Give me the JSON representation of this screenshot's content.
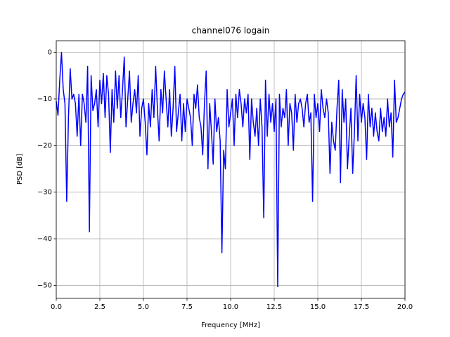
{
  "chart_data": {
    "type": "line",
    "title": "channel076 logain",
    "x_label": "Frequency [MHz]",
    "y_label": "PSD [dB]",
    "color": "#0000ff",
    "grid": true,
    "xlim": [
      0,
      20
    ],
    "ylim": [
      -52.8,
      2.5
    ],
    "xticks": [
      {
        "value": 0,
        "label": "0.0"
      },
      2.5,
      {
        "value": 5,
        "label": "5.0"
      },
      7.5,
      {
        "value": 10,
        "label": "10.0"
      },
      12.5,
      {
        "value": 15,
        "label": "15.0"
      },
      17.5,
      {
        "value": 20,
        "label": "20.0"
      }
    ],
    "yticks": [
      {
        "value": -50,
        "label": "−50"
      },
      {
        "value": -40,
        "label": "−40"
      },
      {
        "value": -30,
        "label": "−30"
      },
      {
        "value": -20,
        "label": "−20"
      },
      {
        "value": -10,
        "label": "−10"
      },
      0
    ],
    "x": [
      0.0,
      0.1,
      0.2,
      0.3,
      0.4,
      0.5,
      0.6,
      0.7,
      0.8,
      0.9,
      1.0,
      1.1,
      1.2,
      1.3,
      1.4,
      1.5,
      1.6,
      1.7,
      1.8,
      1.9,
      2.0,
      2.1,
      2.2,
      2.3,
      2.4,
      2.5,
      2.6,
      2.7,
      2.8,
      2.9,
      3.0,
      3.1,
      3.2,
      3.3,
      3.4,
      3.5,
      3.6,
      3.7,
      3.8,
      3.9,
      4.0,
      4.1,
      4.2,
      4.3,
      4.4,
      4.5,
      4.6,
      4.7,
      4.8,
      4.9,
      5.0,
      5.1,
      5.2,
      5.3,
      5.4,
      5.5,
      5.6,
      5.7,
      5.8,
      5.9,
      6.0,
      6.1,
      6.2,
      6.3,
      6.4,
      6.5,
      6.6,
      6.7,
      6.8,
      6.9,
      7.0,
      7.1,
      7.2,
      7.3,
      7.4,
      7.5,
      7.6,
      7.7,
      7.8,
      7.9,
      8.0,
      8.1,
      8.2,
      8.3,
      8.4,
      8.5,
      8.6,
      8.7,
      8.8,
      8.9,
      9.0,
      9.1,
      9.2,
      9.3,
      9.4,
      9.5,
      9.6,
      9.7,
      9.8,
      9.9,
      10.0,
      10.1,
      10.2,
      10.3,
      10.4,
      10.5,
      10.6,
      10.7,
      10.8,
      10.9,
      11.0,
      11.1,
      11.2,
      11.3,
      11.4,
      11.5,
      11.6,
      11.7,
      11.8,
      11.9,
      12.0,
      12.1,
      12.2,
      12.3,
      12.4,
      12.5,
      12.6,
      12.7,
      12.8,
      12.9,
      13.0,
      13.1,
      13.2,
      13.3,
      13.4,
      13.5,
      13.6,
      13.7,
      13.8,
      13.9,
      14.0,
      14.1,
      14.2,
      14.3,
      14.4,
      14.5,
      14.6,
      14.7,
      14.8,
      14.9,
      15.0,
      15.1,
      15.2,
      15.3,
      15.4,
      15.5,
      15.6,
      15.7,
      15.8,
      15.9,
      16.0,
      16.1,
      16.2,
      16.3,
      16.4,
      16.5,
      16.6,
      16.7,
      16.8,
      16.9,
      17.0,
      17.1,
      17.2,
      17.3,
      17.4,
      17.5,
      17.6,
      17.7,
      17.8,
      17.9,
      18.0,
      18.1,
      18.2,
      18.3,
      18.4,
      18.5,
      18.6,
      18.7,
      18.8,
      18.9,
      19.0,
      19.1,
      19.2,
      19.3,
      19.4,
      19.5,
      19.6,
      19.7,
      19.8,
      19.9,
      20.0
    ],
    "values": [
      -10.5,
      -13.5,
      -6,
      0,
      -8,
      -11,
      -32,
      -14,
      -3.5,
      -10,
      -9,
      -11,
      -18,
      -9,
      -20,
      -9,
      -11,
      -15,
      -3,
      -38.5,
      -5,
      -12.5,
      -11,
      -8,
      -16,
      -6,
      -11,
      -4.5,
      -14,
      -5,
      -9,
      -21.5,
      -8,
      -15,
      -4,
      -12,
      -5,
      -14,
      -8,
      -1,
      -16,
      -10,
      -4,
      -15,
      -11,
      -8,
      -13,
      -5,
      -18,
      -12,
      -10,
      -15,
      -22,
      -11,
      -16,
      -8,
      -14,
      -3,
      -12,
      -19,
      -8,
      -13,
      -4,
      -10,
      -16,
      -8,
      -18,
      -12,
      -3,
      -17,
      -13,
      -9,
      -19,
      -11,
      -17,
      -10,
      -12,
      -14,
      -20,
      -9,
      -12,
      -7,
      -14,
      -16,
      -22,
      -11,
      -4,
      -25,
      -11,
      -17,
      -24,
      -10,
      -17,
      -14,
      -19,
      -43,
      -21,
      -25,
      -8,
      -16,
      -13,
      -10,
      -20,
      -9,
      -14,
      -8,
      -11,
      -16,
      -10,
      -13,
      -9,
      -23,
      -10,
      -15,
      -18,
      -12,
      -20,
      -10,
      -16,
      -35.5,
      -6,
      -18,
      -9,
      -15,
      -11,
      -17,
      -10,
      -50.3,
      -9,
      -16,
      -12,
      -14,
      -8,
      -20,
      -11,
      -13,
      -21,
      -9,
      -15,
      -11,
      -10,
      -12,
      -16,
      -11,
      -9,
      -15,
      -13,
      -32,
      -9,
      -14,
      -11,
      -17,
      -8,
      -12,
      -14,
      -10,
      -13,
      -26,
      -15,
      -19,
      -21,
      -12,
      -6,
      -28,
      -8,
      -15,
      -10,
      -25,
      -18,
      -12,
      -26,
      -17,
      -5,
      -19,
      -9,
      -15,
      -11,
      -14,
      -23,
      -9,
      -16,
      -12,
      -18,
      -13,
      -17,
      -19,
      -12,
      -17,
      -14,
      -18,
      -10,
      -16,
      -13,
      -22.5,
      -6,
      -15,
      -14,
      -12,
      -10,
      -9,
      -8.5
    ]
  }
}
